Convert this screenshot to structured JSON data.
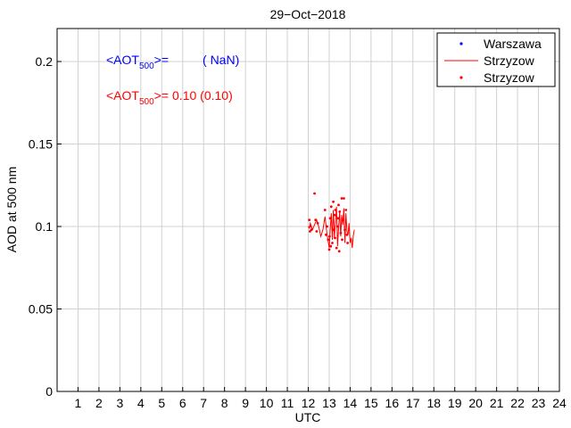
{
  "chart_data": {
    "type": "scatter",
    "title": "29−Oct−2018",
    "xlabel": "UTC",
    "ylabel": "AOD at 500 nm",
    "xlim": [
      0,
      24
    ],
    "ylim": [
      0,
      0.22
    ],
    "x_ticks": [
      1,
      2,
      3,
      4,
      5,
      6,
      7,
      8,
      9,
      10,
      11,
      12,
      13,
      14,
      15,
      16,
      17,
      18,
      19,
      20,
      21,
      22,
      23,
      24
    ],
    "y_ticks": [
      0,
      0.05,
      0.1,
      0.15,
      0.2
    ],
    "y_tick_labels": [
      "0",
      "0.05",
      "0.1",
      "0.15",
      "0.2"
    ],
    "grid": true,
    "legend_position": "top-right",
    "colors": {
      "warszawa": "#0000ff",
      "strzyzow": "#ff0000",
      "grid": "#d0d0d0"
    },
    "legend": [
      {
        "label": "Warszawa",
        "marker": "dot",
        "color": "#0000ff"
      },
      {
        "label": "Strzyzow",
        "marker": "line",
        "color": "#ff0000"
      },
      {
        "label": "Strzyzow",
        "marker": "dot",
        "color": "#ff0000"
      }
    ],
    "annotations": [
      {
        "prefix": "<AOT",
        "sub": "500",
        "suffix": ">=",
        "value": "( NaN)",
        "color": "#0000ff"
      },
      {
        "prefix": "<AOT",
        "sub": "500",
        "suffix": ">=",
        "value": "0.10 (0.10)",
        "color": "#ff0000"
      }
    ],
    "series": [
      {
        "name": "Warszawa",
        "style": "dots",
        "color": "#0000ff",
        "x": [],
        "y": []
      },
      {
        "name": "Strzyzow",
        "style": "line",
        "color": "#ff0000",
        "x": [
          12.0,
          12.05,
          12.1,
          12.2,
          12.3,
          12.4,
          12.5,
          12.6,
          12.7,
          12.8,
          12.9,
          13.0,
          13.05,
          13.1,
          13.15,
          13.2,
          13.25,
          13.3,
          13.35,
          13.4,
          13.45,
          13.5,
          13.55,
          13.6,
          13.65,
          13.7,
          13.75,
          13.8,
          13.85,
          13.9,
          13.95,
          14.0,
          14.05,
          14.1,
          14.15,
          14.2
        ],
        "y": [
          0.1,
          0.099,
          0.102,
          0.098,
          0.101,
          0.104,
          0.1,
          0.094,
          0.098,
          0.106,
          0.095,
          0.087,
          0.098,
          0.108,
          0.092,
          0.11,
          0.093,
          0.103,
          0.112,
          0.088,
          0.099,
          0.109,
          0.094,
          0.107,
          0.101,
          0.111,
          0.09,
          0.108,
          0.097,
          0.095,
          0.102,
          0.09,
          0.093,
          0.087,
          0.094,
          0.098
        ]
      },
      {
        "name": "Strzyzow",
        "style": "dots",
        "color": "#ff0000",
        "x": [
          12.05,
          12.08,
          12.1,
          12.15,
          12.3,
          12.35,
          12.4,
          12.45,
          12.8,
          12.85,
          12.9,
          12.95,
          13.0,
          13.02,
          13.05,
          13.08,
          13.1,
          13.15,
          13.2,
          13.22,
          13.25,
          13.28,
          13.3,
          13.35,
          13.4,
          13.42,
          13.45,
          13.48,
          13.5,
          13.55,
          13.6,
          13.62,
          13.65,
          13.7,
          13.75,
          13.8,
          13.85,
          13.88
        ],
        "y": [
          0.104,
          0.097,
          0.1,
          0.098,
          0.12,
          0.104,
          0.097,
          0.102,
          0.11,
          0.095,
          0.1,
          0.092,
          0.086,
          0.094,
          0.105,
          0.088,
          0.112,
          0.09,
          0.115,
          0.098,
          0.107,
          0.093,
          0.11,
          0.087,
          0.1,
          0.105,
          0.113,
          0.085,
          0.109,
          0.096,
          0.117,
          0.092,
          0.104,
          0.117,
          0.098,
          0.11,
          0.095,
          0.09
        ]
      }
    ]
  }
}
